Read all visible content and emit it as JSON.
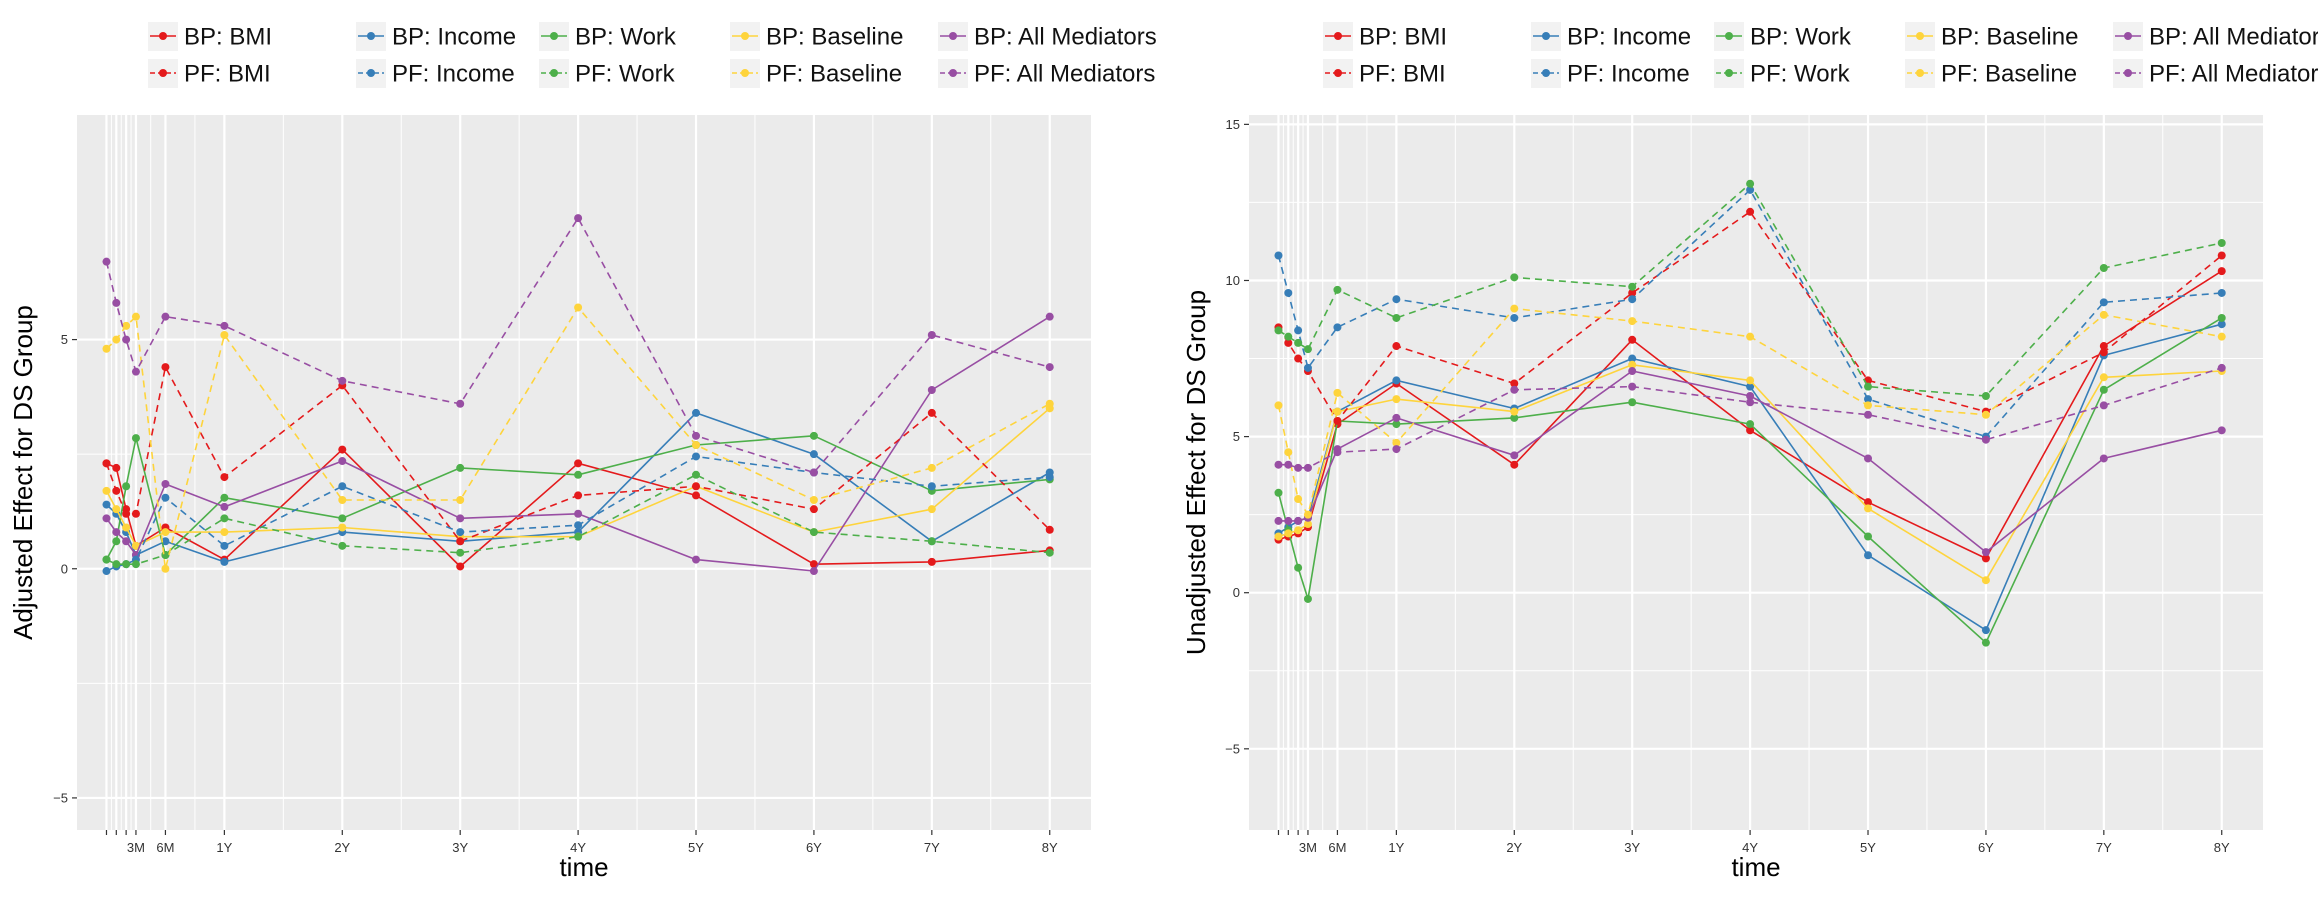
{
  "chart_data": [
    {
      "type": "line",
      "xlabel": "time",
      "ylabel": "Adjusted Effect for DS Group",
      "ylim": [
        -5.7,
        9.9
      ],
      "y_ticks": [
        -5,
        0,
        5
      ],
      "y_tick_labels": [
        "−5",
        "0",
        "5"
      ],
      "xlim": [
        -0.25,
        8.35
      ],
      "x": [
        0,
        0.0833,
        0.1667,
        0.25,
        0.5,
        1,
        2,
        3,
        4,
        5,
        6,
        7,
        8
      ],
      "x_tick_values": [
        0,
        0.0833,
        0.1667,
        0.25,
        0.5,
        1,
        2,
        3,
        4,
        5,
        6,
        7,
        8
      ],
      "x_tick_labels": [
        "",
        "",
        "",
        "3M",
        "6M",
        "1Y",
        "2Y",
        "3Y",
        "4Y",
        "5Y",
        "6Y",
        "7Y",
        "8Y"
      ],
      "grid": true,
      "legend_position": "top",
      "series": [
        {
          "name": "BP: BMI",
          "color": "#e41a1c",
          "dashed": false,
          "values": [
            2.3,
            2.2,
            1.3,
            0.5,
            0.9,
            0.2,
            2.6,
            0.05,
            2.3,
            1.6,
            0.1,
            0.15,
            0.4
          ]
        },
        {
          "name": "BP: Income",
          "color": "#377eb8",
          "dashed": false,
          "values": [
            1.4,
            1.2,
            0.8,
            0.3,
            0.6,
            0.15,
            0.8,
            0.6,
            0.8,
            3.4,
            2.5,
            0.6,
            2.1
          ]
        },
        {
          "name": "BP: Work",
          "color": "#4daf4a",
          "dashed": false,
          "values": [
            0.2,
            0.6,
            1.8,
            2.85,
            0.3,
            1.55,
            1.1,
            2.2,
            2.05,
            2.7,
            2.9,
            1.7,
            1.95
          ]
        },
        {
          "name": "BP: Baseline",
          "color": "#fed43c",
          "dashed": false,
          "values": [
            1.7,
            1.3,
            0.9,
            0.5,
            0.8,
            0.8,
            0.9,
            0.7,
            0.7,
            1.8,
            0.8,
            1.3,
            3.5
          ]
        },
        {
          "name": "BP: All Mediators",
          "color": "#984ea3",
          "dashed": false,
          "values": [
            1.1,
            0.8,
            0.6,
            0.3,
            1.85,
            1.35,
            2.35,
            1.1,
            1.2,
            0.2,
            -0.05,
            3.9,
            5.5
          ]
        },
        {
          "name": "PF: BMI",
          "color": "#e41a1c",
          "dashed": true,
          "values": [
            2.3,
            1.7,
            1.2,
            1.2,
            4.4,
            2.0,
            4.0,
            0.6,
            1.6,
            1.8,
            1.3,
            3.4,
            0.85
          ]
        },
        {
          "name": "PF: Income",
          "color": "#377eb8",
          "dashed": true,
          "values": [
            -0.05,
            0.05,
            0.1,
            0.2,
            1.55,
            0.5,
            1.8,
            0.8,
            0.95,
            2.45,
            2.1,
            1.8,
            2.0
          ]
        },
        {
          "name": "PF: Work",
          "color": "#4daf4a",
          "dashed": true,
          "values": [
            0.2,
            0.1,
            0.1,
            0.1,
            0.3,
            1.1,
            0.5,
            0.35,
            0.7,
            2.05,
            0.8,
            0.6,
            0.35
          ]
        },
        {
          "name": "PF: Baseline",
          "color": "#fed43c",
          "dashed": true,
          "values": [
            4.8,
            5.0,
            5.3,
            5.5,
            0.0,
            5.1,
            1.5,
            1.5,
            5.7,
            2.7,
            1.5,
            2.2,
            3.6
          ]
        },
        {
          "name": "PF: All Mediators",
          "color": "#984ea3",
          "dashed": true,
          "values": [
            6.7,
            5.8,
            5.0,
            4.3,
            5.5,
            5.3,
            4.1,
            3.6,
            7.65,
            2.9,
            2.1,
            5.1,
            4.4
          ]
        }
      ]
    },
    {
      "type": "line",
      "xlabel": "time",
      "ylabel": "Unadjusted Effect for DS Group",
      "ylim": [
        -7.6,
        15.3
      ],
      "y_ticks": [
        -5,
        0,
        5,
        10,
        15
      ],
      "y_tick_labels": [
        "−5",
        "0",
        "5",
        "10",
        "15"
      ],
      "xlim": [
        -0.25,
        8.35
      ],
      "x": [
        0,
        0.0833,
        0.1667,
        0.25,
        0.5,
        1,
        2,
        3,
        4,
        5,
        6,
        7,
        8
      ],
      "x_tick_values": [
        0,
        0.0833,
        0.1667,
        0.25,
        0.5,
        1,
        2,
        3,
        4,
        5,
        6,
        7,
        8
      ],
      "x_tick_labels": [
        "",
        "",
        "",
        "3M",
        "6M",
        "1Y",
        "2Y",
        "3Y",
        "4Y",
        "5Y",
        "6Y",
        "7Y",
        "8Y"
      ],
      "grid": true,
      "legend_position": "top",
      "series": [
        {
          "name": "BP: BMI",
          "color": "#e41a1c",
          "dashed": false,
          "values": [
            1.7,
            1.8,
            1.9,
            2.1,
            5.4,
            6.7,
            4.1,
            8.1,
            5.2,
            2.9,
            1.1,
            7.9,
            10.3
          ]
        },
        {
          "name": "BP: Income",
          "color": "#377eb8",
          "dashed": false,
          "values": [
            1.9,
            2.1,
            2.3,
            2.4,
            5.8,
            6.8,
            5.9,
            7.5,
            6.6,
            1.2,
            -1.2,
            7.6,
            8.6
          ]
        },
        {
          "name": "BP: Work",
          "color": "#4daf4a",
          "dashed": false,
          "values": [
            3.2,
            2.0,
            0.8,
            -0.2,
            5.5,
            5.4,
            5.6,
            6.1,
            5.4,
            1.8,
            -1.6,
            6.5,
            8.8
          ]
        },
        {
          "name": "BP: Baseline",
          "color": "#fed43c",
          "dashed": false,
          "values": [
            1.8,
            1.9,
            2.0,
            2.2,
            5.8,
            6.2,
            5.8,
            7.3,
            6.8,
            2.7,
            0.4,
            6.9,
            7.1
          ]
        },
        {
          "name": "BP: All Mediators",
          "color": "#984ea3",
          "dashed": false,
          "values": [
            2.3,
            2.3,
            2.3,
            2.4,
            4.6,
            5.6,
            4.4,
            7.1,
            6.3,
            4.3,
            1.3,
            4.3,
            5.2
          ]
        },
        {
          "name": "PF: BMI",
          "color": "#e41a1c",
          "dashed": true,
          "values": [
            8.5,
            8.0,
            7.5,
            7.1,
            5.5,
            7.9,
            6.7,
            9.6,
            12.2,
            6.8,
            5.8,
            7.7,
            10.8
          ]
        },
        {
          "name": "PF: Income",
          "color": "#377eb8",
          "dashed": true,
          "values": [
            10.8,
            9.6,
            8.4,
            7.2,
            8.5,
            9.4,
            8.8,
            9.4,
            12.9,
            6.2,
            5.0,
            9.3,
            9.6
          ]
        },
        {
          "name": "PF: Work",
          "color": "#4daf4a",
          "dashed": true,
          "values": [
            8.4,
            8.2,
            8.0,
            7.8,
            9.7,
            8.8,
            10.1,
            9.8,
            13.1,
            6.6,
            6.3,
            10.4,
            11.2
          ]
        },
        {
          "name": "PF: Baseline",
          "color": "#fed43c",
          "dashed": true,
          "values": [
            6.0,
            4.5,
            3.0,
            2.5,
            6.4,
            4.8,
            9.1,
            8.7,
            8.2,
            6.0,
            5.7,
            8.9,
            8.2
          ]
        },
        {
          "name": "PF: All Mediators",
          "color": "#984ea3",
          "dashed": true,
          "values": [
            4.1,
            4.1,
            4.0,
            4.0,
            4.5,
            4.6,
            6.5,
            6.6,
            6.1,
            5.7,
            4.9,
            6.0,
            7.2
          ]
        }
      ]
    }
  ]
}
